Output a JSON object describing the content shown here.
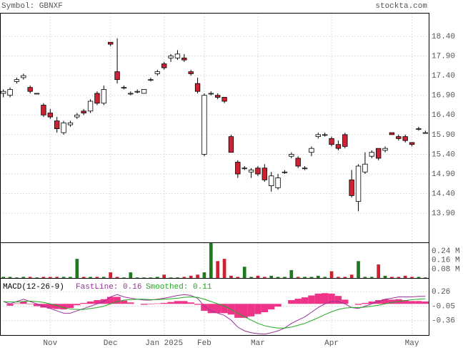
{
  "header": {
    "symbol": "Symbol: GBNXF",
    "source": "stockta.com"
  },
  "chart_data": [
    {
      "type": "candlestick",
      "open": [
        16.95,
        16.9,
        17.25,
        17.35,
        17.1,
        16.95,
        16.65,
        16.45,
        16.25,
        15.95,
        16.15,
        16.35,
        16.5,
        16.5,
        16.95,
        16.7,
        18.25,
        17.5,
        17.1,
        16.95,
        17.0,
        16.95,
        17.3,
        17.45,
        17.7,
        17.85,
        17.85,
        17.85,
        17.5,
        17.2,
        15.4,
        16.95,
        16.9,
        16.85,
        15.85,
        15.2,
        15.05,
        14.95,
        15.05,
        15.05,
        14.6,
        14.55,
        14.95,
        15.35,
        15.3,
        15.05,
        15.45,
        15.85,
        15.9,
        15.8,
        15.65,
        15.9,
        14.75,
        14.2,
        14.95,
        15.35,
        15.55,
        15.5,
        15.95,
        15.85,
        15.85,
        15.7,
        16.05,
        15.95
      ],
      "high": [
        17.05,
        17.1,
        17.35,
        17.45,
        17.15,
        16.95,
        16.7,
        16.55,
        16.35,
        16.25,
        16.25,
        16.45,
        16.55,
        16.8,
        17.0,
        17.15,
        18.25,
        18.35,
        17.15,
        17.0,
        17.05,
        17.05,
        17.35,
        17.55,
        17.75,
        17.95,
        18.05,
        17.95,
        17.55,
        17.35,
        16.95,
        17.0,
        16.95,
        16.85,
        15.9,
        15.25,
        15.1,
        15.05,
        15.1,
        15.15,
        14.95,
        14.9,
        15.0,
        15.45,
        15.35,
        15.1,
        15.6,
        15.95,
        15.95,
        15.85,
        15.75,
        15.95,
        15.0,
        15.15,
        15.45,
        15.5,
        15.55,
        15.6,
        15.95,
        15.9,
        15.9,
        15.7,
        16.1,
        16.0
      ],
      "low": [
        16.85,
        16.85,
        17.2,
        17.3,
        16.95,
        16.95,
        16.35,
        16.3,
        15.95,
        15.9,
        16.1,
        16.3,
        16.4,
        16.45,
        16.65,
        16.65,
        18.15,
        17.2,
        17.05,
        16.9,
        16.95,
        16.95,
        17.25,
        17.4,
        17.55,
        17.75,
        17.8,
        17.75,
        17.4,
        16.95,
        15.35,
        16.9,
        16.8,
        16.7,
        15.45,
        14.8,
        15.0,
        14.8,
        14.85,
        14.7,
        14.45,
        14.5,
        14.9,
        15.3,
        15.05,
        15.0,
        15.35,
        15.8,
        15.85,
        15.6,
        15.5,
        15.55,
        14.3,
        13.95,
        14.9,
        15.3,
        15.25,
        15.45,
        15.9,
        15.75,
        15.7,
        15.6,
        16.0,
        15.95
      ],
      "close": [
        17.0,
        17.05,
        17.3,
        17.4,
        17.0,
        16.95,
        16.4,
        16.35,
        16.05,
        16.2,
        16.2,
        16.4,
        16.45,
        16.75,
        16.7,
        17.05,
        18.2,
        17.3,
        17.1,
        16.95,
        17.0,
        17.05,
        17.3,
        17.5,
        17.6,
        17.9,
        17.95,
        17.8,
        17.45,
        17.0,
        16.9,
        16.95,
        16.85,
        16.75,
        15.45,
        14.9,
        15.05,
        15.0,
        14.9,
        14.75,
        14.85,
        14.8,
        14.95,
        15.4,
        15.1,
        15.05,
        15.55,
        15.9,
        15.9,
        15.65,
        15.55,
        15.6,
        14.35,
        15.1,
        15.15,
        15.45,
        15.3,
        15.55,
        15.9,
        15.8,
        15.75,
        15.65,
        16.05,
        15.95
      ],
      "up_color": "#ffffff",
      "down_color": "#cc2233",
      "ylim": [
        13.16,
        18.98
      ],
      "yticks": [
        {
          "value": 18.4,
          "label": "18.40"
        },
        {
          "value": 17.9,
          "label": "17.90"
        },
        {
          "value": 17.4,
          "label": "17.40"
        },
        {
          "value": 16.9,
          "label": "16.90"
        },
        {
          "value": 16.4,
          "label": "16.40"
        },
        {
          "value": 15.9,
          "label": "15.90"
        },
        {
          "value": 15.4,
          "label": "15.40"
        },
        {
          "value": 14.9,
          "label": "14.90"
        },
        {
          "value": 14.4,
          "label": "14.40"
        },
        {
          "value": 13.9,
          "label": "13.90"
        }
      ],
      "grid": true
    },
    {
      "type": "bar",
      "values": [
        0.01,
        0.01,
        0.005,
        0.01,
        0.01,
        0.005,
        0.01,
        0.01,
        0.01,
        0.01,
        0.01,
        0.17,
        0.01,
        0.01,
        0.01,
        0.01,
        0.05,
        0.01,
        0.005,
        0.05,
        0.005,
        0.005,
        0.005,
        0.01,
        0.03,
        0.005,
        0.005,
        0.01,
        0.02,
        0.03,
        0.05,
        0.31,
        0.15,
        0.17,
        0.02,
        0.01,
        0.1,
        0.01,
        0.02,
        0.01,
        0.02,
        0.01,
        0.01,
        0.07,
        0.01,
        0.01,
        0.01,
        0.02,
        0.01,
        0.06,
        0.01,
        0.01,
        0.03,
        0.15,
        0.01,
        0.01,
        0.12,
        0.02,
        0.01,
        0.01,
        0.02,
        0.01,
        0.01,
        0.005
      ],
      "up_color": "#1f7a1f",
      "down_color": "#cc2233",
      "ylim": [
        0,
        0.31
      ],
      "yticks": [
        {
          "value": 0.24,
          "label": "0.24 M"
        },
        {
          "value": 0.16,
          "label": "0.16 M"
        },
        {
          "value": 0.08,
          "label": "0.08 M"
        }
      ]
    },
    {
      "type": "line",
      "title": "MACD(12-26-9)",
      "categories": [
        null,
        null,
        null,
        null,
        null,
        null,
        null,
        "Nov",
        null,
        null,
        null,
        null,
        null,
        null,
        null,
        null,
        "Dec",
        null,
        null,
        null,
        null,
        null,
        null,
        null,
        "Jan 2025",
        null,
        null,
        null,
        null,
        null,
        "Feb",
        null,
        null,
        null,
        null,
        null,
        null,
        null,
        "Mar",
        null,
        null,
        null,
        null,
        null,
        null,
        null,
        null,
        null,
        null,
        "Apr",
        null,
        null,
        null,
        null,
        null,
        null,
        null,
        null,
        null,
        null,
        null,
        "May",
        null,
        null
      ],
      "series": [
        {
          "name": "FastLine: 0.16",
          "color": "#993399",
          "values": [
            0.05,
            0.0,
            0.05,
            0.1,
            0.05,
            0.0,
            -0.05,
            -0.1,
            -0.15,
            -0.2,
            -0.2,
            -0.15,
            -0.1,
            -0.05,
            0.0,
            0.05,
            0.15,
            0.2,
            0.15,
            0.12,
            0.1,
            0.08,
            0.08,
            0.1,
            0.12,
            0.15,
            0.18,
            0.2,
            0.18,
            0.12,
            -0.05,
            -0.15,
            -0.2,
            -0.25,
            -0.35,
            -0.5,
            -0.58,
            -0.62,
            -0.64,
            -0.65,
            -0.62,
            -0.58,
            -0.52,
            -0.42,
            -0.35,
            -0.28,
            -0.18,
            -0.08,
            0.0,
            0.05,
            0.05,
            0.0,
            -0.08,
            -0.1,
            -0.05,
            0.0,
            0.05,
            0.1,
            0.12,
            0.15,
            0.15,
            0.15,
            0.16,
            0.16
          ]
        },
        {
          "name": "Smoothed: 0.11",
          "color": "#22aa22",
          "values": [
            0.05,
            0.04,
            0.04,
            0.05,
            0.06,
            0.05,
            0.03,
            0.0,
            -0.04,
            -0.08,
            -0.11,
            -0.12,
            -0.12,
            -0.1,
            -0.08,
            -0.05,
            0.0,
            0.05,
            0.08,
            0.09,
            0.1,
            0.1,
            0.09,
            0.09,
            0.1,
            0.11,
            0.12,
            0.14,
            0.15,
            0.14,
            0.1,
            0.05,
            0.0,
            -0.05,
            -0.12,
            -0.2,
            -0.28,
            -0.35,
            -0.42,
            -0.47,
            -0.5,
            -0.52,
            -0.52,
            -0.5,
            -0.46,
            -0.42,
            -0.36,
            -0.3,
            -0.23,
            -0.17,
            -0.12,
            -0.09,
            -0.08,
            -0.08,
            -0.07,
            -0.05,
            -0.03,
            0.0,
            0.03,
            0.05,
            0.07,
            0.09,
            0.1,
            0.11
          ]
        }
      ],
      "histogram": {
        "color": "#ee3388",
        "values": [
          0.0,
          -0.04,
          0.01,
          0.05,
          -0.01,
          -0.05,
          -0.08,
          -0.1,
          -0.11,
          -0.12,
          -0.09,
          -0.03,
          0.02,
          0.05,
          0.08,
          0.1,
          0.15,
          0.15,
          0.07,
          0.03,
          0.0,
          -0.02,
          -0.01,
          0.01,
          0.02,
          0.04,
          0.06,
          0.06,
          0.03,
          -0.02,
          -0.15,
          -0.2,
          -0.2,
          -0.2,
          -0.23,
          -0.3,
          -0.3,
          -0.27,
          -0.22,
          -0.18,
          -0.12,
          -0.06,
          0.0,
          0.08,
          0.11,
          0.14,
          0.18,
          0.22,
          0.23,
          0.22,
          0.17,
          0.09,
          0.0,
          -0.02,
          0.02,
          0.05,
          0.08,
          0.1,
          0.09,
          0.1,
          0.08,
          0.06,
          0.06,
          0.05
        ]
      },
      "ylim": [
        -0.67,
        0.54
      ],
      "yticks": [
        0.26,
        -0.05,
        -0.36
      ],
      "grid": true
    }
  ]
}
